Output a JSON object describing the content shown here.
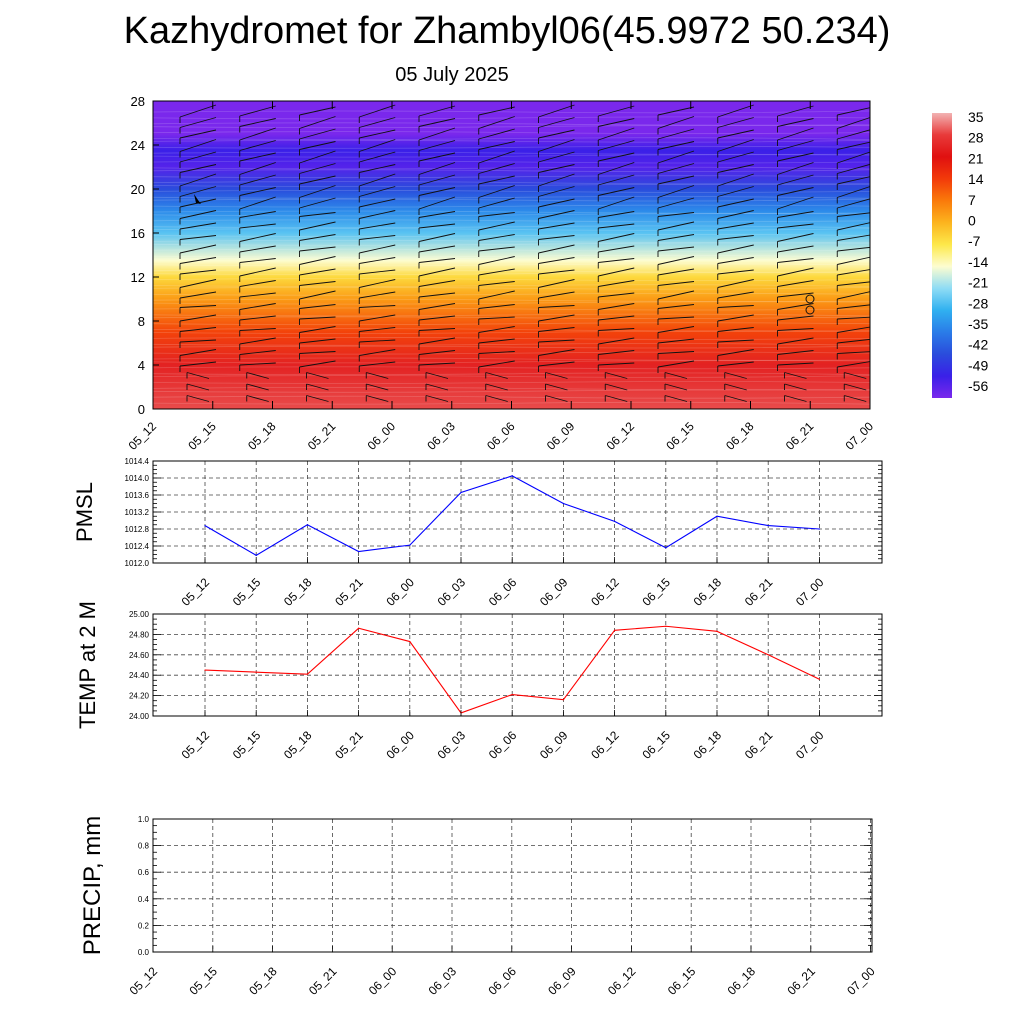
{
  "header": {
    "title": "Kazhydromet for Zhambyl06(45.9972 50.234)",
    "date": "05 July 2025"
  },
  "colorbar_labels": [
    "35",
    "28",
    "21",
    "14",
    "7",
    "0",
    "-7",
    "-14",
    "-21",
    "-28",
    "-35",
    "-42",
    "-49",
    "-56"
  ],
  "chart_data": [
    {
      "type": "heatmap",
      "title": "",
      "xlabel": "",
      "ylabel": "",
      "x": [
        "05_12",
        "05_15",
        "05_18",
        "05_21",
        "06_00",
        "06_03",
        "06_06",
        "06_09",
        "06_12",
        "06_15",
        "06_18",
        "06_21",
        "07_00"
      ],
      "y_ticks": [
        0,
        4,
        8,
        12,
        16,
        20,
        24,
        28
      ],
      "ylim": [
        0,
        28
      ],
      "colorbar": {
        "levels": [
          35,
          28,
          21,
          14,
          7,
          0,
          -7,
          -14,
          -21,
          -28,
          -35,
          -42,
          -49,
          -56
        ],
        "colors": [
          "#f2b3b3",
          "#e83a3a",
          "#e01010",
          "#f23a0a",
          "#fa7a0a",
          "#fcb41e",
          "#fde84a",
          "#fdfdd0",
          "#8fdcf5",
          "#30b0f0",
          "#2a7ce8",
          "#2a4cdc",
          "#3a20e8",
          "#7a28ec"
        ]
      },
      "temperature_profile": [
        {
          "level": 0,
          "value": 29
        },
        {
          "level": 4,
          "value": 24
        },
        {
          "level": 7,
          "value": 13
        },
        {
          "level": 10,
          "value": 3
        },
        {
          "level": 12,
          "value": -5
        },
        {
          "level": 13.5,
          "value": -14
        },
        {
          "level": 16,
          "value": -25
        },
        {
          "level": 18,
          "value": -33
        },
        {
          "level": 20,
          "value": -42
        },
        {
          "level": 22,
          "value": -52
        },
        {
          "level": 23.5,
          "value": -49
        },
        {
          "level": 25,
          "value": -58
        },
        {
          "level": 28,
          "value": -60
        }
      ],
      "wind_barbs": "present"
    },
    {
      "type": "line",
      "ylabel": "PMSL",
      "categories": [
        "05_12",
        "05_15",
        "05_18",
        "05_21",
        "06_00",
        "06_03",
        "06_06",
        "06_09",
        "06_12",
        "06_15",
        "06_18",
        "06_21",
        "07_00"
      ],
      "ylim": [
        1012.0,
        1014.4
      ],
      "y_ticks": [
        "1012.0",
        "1012.4",
        "1012.8",
        "1013.2",
        "1013.6",
        "1014.0",
        "1014.4"
      ],
      "series": [
        {
          "color": "#0000ff",
          "values": [
            1012.88,
            1012.18,
            1012.9,
            1012.27,
            1012.42,
            1013.66,
            1014.05,
            1013.4,
            1012.98,
            1012.36,
            1013.1,
            1012.88,
            1012.8
          ]
        }
      ],
      "grid": true
    },
    {
      "type": "line",
      "ylabel": "TEMP at 2 M",
      "categories": [
        "05_12",
        "05_15",
        "05_18",
        "05_21",
        "06_00",
        "06_03",
        "06_06",
        "06_09",
        "06_12",
        "06_15",
        "06_18",
        "06_21",
        "07_00"
      ],
      "ylim": [
        24.0,
        25.0
      ],
      "y_ticks": [
        "24.00",
        "24.20",
        "24.40",
        "24.60",
        "24.80",
        "25.00"
      ],
      "series": [
        {
          "color": "#ff0000",
          "values": [
            24.45,
            24.43,
            24.41,
            24.86,
            24.73,
            24.03,
            24.21,
            24.16,
            24.84,
            24.88,
            24.83,
            24.6,
            24.36
          ]
        }
      ],
      "grid": true
    },
    {
      "type": "line",
      "ylabel": "PRECIP, mm",
      "categories": [
        "05_12",
        "05_15",
        "05_18",
        "05_21",
        "06_00",
        "06_03",
        "06_06",
        "06_09",
        "06_12",
        "06_15",
        "06_18",
        "06_21",
        "07_00"
      ],
      "ylim": [
        0.0,
        1.0
      ],
      "y_ticks": [
        "0.0",
        "0.2",
        "0.4",
        "0.6",
        "0.8",
        "1.0"
      ],
      "series": [
        {
          "color": "#006400",
          "values": [
            0,
            0,
            0,
            0,
            0,
            0,
            0,
            0,
            0,
            0,
            0,
            0,
            0
          ]
        }
      ],
      "grid": true
    }
  ]
}
